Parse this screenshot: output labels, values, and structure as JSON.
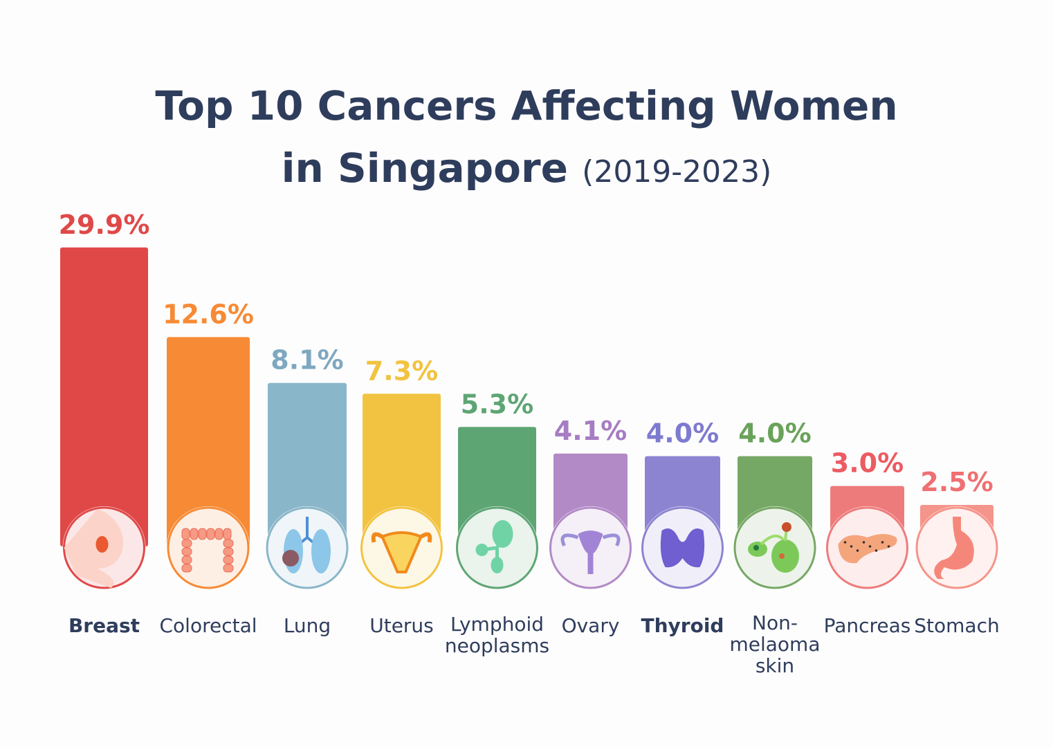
{
  "chart_data": {
    "type": "bar",
    "title_line1": "Top 10 Cancers Affecting Women",
    "title_line2": "in Singapore",
    "title_years": "(2019-2023)",
    "categories": [
      "Breast",
      "Colorectal",
      "Lung",
      "Uterus",
      "Lymphoid neoplasms",
      "Ovary",
      "Thyroid",
      "Non-melaoma skin",
      "Pancreas",
      "Stomach"
    ],
    "label_lines": [
      [
        "Breast"
      ],
      [
        "Colorectal"
      ],
      [
        "Lung"
      ],
      [
        "Uterus"
      ],
      [
        "Lymphoid",
        "neoplasms"
      ],
      [
        "Ovary"
      ],
      [
        "Thyroid"
      ],
      [
        "Non-",
        "melaoma",
        "skin"
      ],
      [
        "Pancreas"
      ],
      [
        "Stomach"
      ]
    ],
    "values": [
      29.9,
      12.6,
      8.1,
      7.3,
      5.3,
      4.1,
      4.0,
      4.0,
      3.0,
      2.5
    ],
    "value_labels": [
      "29.9%",
      "12.6%",
      "8.1%",
      "7.3%",
      "5.3%",
      "4.1%",
      "4.0%",
      "4.0%",
      "3.0%",
      "2.5%"
    ],
    "unit": "%",
    "colors": [
      "#e04848",
      "#f78a35",
      "#8ab6c9",
      "#f2c340",
      "#5ea574",
      "#b28ac6",
      "#8d84d1",
      "#76a865",
      "#ee7b7b",
      "#f5948a"
    ],
    "label_colors": [
      "#e04848",
      "#f78a35",
      "#7ea8bf",
      "#f2c340",
      "#5ea574",
      "#a67cc2",
      "#7d7bd0",
      "#6aa25a",
      "#ec5b63",
      "#ef6f72"
    ],
    "icons": [
      "breast-icon",
      "colon-icon",
      "lungs-icon",
      "uterus-icon",
      "lymph-node-icon",
      "ovary-icon",
      "thyroid-icon",
      "skin-cells-icon",
      "pancreas-icon",
      "stomach-icon"
    ],
    "grid": false,
    "legend": "none",
    "y_axis": "hidden",
    "title_color": "#2f3d5c"
  }
}
